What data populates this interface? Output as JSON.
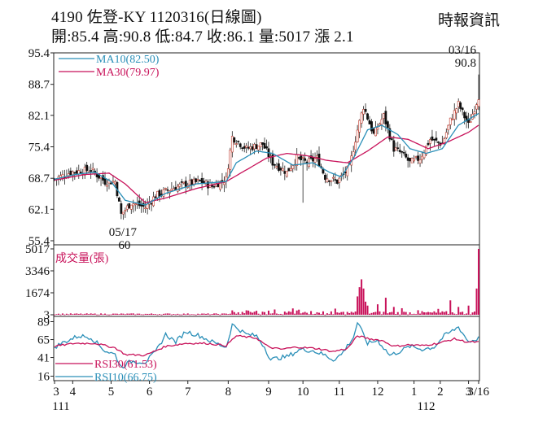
{
  "header": {
    "title": "4190  佐登-KY 1120316(日線圖)",
    "quote": "開:85.4 高:90.8 低:84.7 收:86.1 量:5017 漲 2.1",
    "source": "時報資訊"
  },
  "chart_data": [
    {
      "type": "candlestick",
      "panel": "price",
      "y_ticks": [
        "95.4",
        "88.7",
        "82.1",
        "75.4",
        "68.7",
        "62.1",
        "55.4"
      ],
      "ylim": [
        55.4,
        95.4
      ],
      "legend": [
        {
          "name": "MA10",
          "value": "MA10(82.50)",
          "color": "#2a8fb8"
        },
        {
          "name": "MA30",
          "value": "MA30(79.97)",
          "color": "#c8125a"
        }
      ],
      "annotations": [
        {
          "date": "05/17",
          "value": "60",
          "kind": "low"
        },
        {
          "date": "03/16",
          "value": "90.8",
          "kind": "high"
        }
      ],
      "close_anchors": [
        [
          0,
          68.5
        ],
        [
          8,
          70
        ],
        [
          18,
          70.5
        ],
        [
          25,
          68
        ],
        [
          30,
          68
        ],
        [
          33,
          61
        ],
        [
          38,
          63.5
        ],
        [
          45,
          62.5
        ],
        [
          50,
          65
        ],
        [
          58,
          66.5
        ],
        [
          65,
          67.5
        ],
        [
          72,
          68
        ],
        [
          78,
          67
        ],
        [
          85,
          68.5
        ],
        [
          88,
          77.5
        ],
        [
          95,
          75
        ],
        [
          103,
          76
        ],
        [
          108,
          72
        ],
        [
          115,
          70
        ],
        [
          120,
          73
        ],
        [
          125,
          72
        ],
        [
          130,
          73
        ],
        [
          134,
          69
        ],
        [
          140,
          68
        ],
        [
          146,
          71
        ],
        [
          150,
          79
        ],
        [
          153,
          84
        ],
        [
          158,
          78
        ],
        [
          163,
          82
        ],
        [
          168,
          75
        ],
        [
          172,
          74
        ],
        [
          176,
          72
        ],
        [
          181,
          73
        ],
        [
          186,
          77
        ],
        [
          192,
          76
        ],
        [
          196,
          81
        ],
        [
          200,
          84.5
        ],
        [
          205,
          80
        ],
        [
          210,
          86.1
        ]
      ],
      "ma10_anchors": [
        [
          0,
          68.5
        ],
        [
          10,
          69.5
        ],
        [
          20,
          70
        ],
        [
          28,
          68
        ],
        [
          35,
          64
        ],
        [
          45,
          63
        ],
        [
          55,
          65.5
        ],
        [
          70,
          67.5
        ],
        [
          85,
          68
        ],
        [
          90,
          72
        ],
        [
          100,
          74.5
        ],
        [
          108,
          74
        ],
        [
          118,
          71.5
        ],
        [
          128,
          72
        ],
        [
          136,
          70
        ],
        [
          142,
          69
        ],
        [
          148,
          73
        ],
        [
          155,
          79
        ],
        [
          162,
          80
        ],
        [
          170,
          78
        ],
        [
          176,
          75
        ],
        [
          184,
          74
        ],
        [
          192,
          75
        ],
        [
          200,
          80
        ],
        [
          210,
          82.5
        ]
      ],
      "ma30_anchors": [
        [
          0,
          68.3
        ],
        [
          15,
          69.5
        ],
        [
          27,
          69.8
        ],
        [
          35,
          67.5
        ],
        [
          45,
          63.5
        ],
        [
          55,
          64.5
        ],
        [
          70,
          66.5
        ],
        [
          85,
          68
        ],
        [
          95,
          70.5
        ],
        [
          105,
          73
        ],
        [
          115,
          74
        ],
        [
          125,
          73.5
        ],
        [
          135,
          72.5
        ],
        [
          145,
          72
        ],
        [
          155,
          74.5
        ],
        [
          165,
          77.5
        ],
        [
          175,
          77
        ],
        [
          185,
          75
        ],
        [
          195,
          76.5
        ],
        [
          205,
          78.5
        ],
        [
          210,
          80
        ]
      ]
    },
    {
      "type": "bar",
      "panel": "volume",
      "label": "成交量(張)",
      "y_ticks": [
        "5017",
        "3346",
        "1674",
        "3"
      ],
      "ylim": [
        3,
        5017
      ],
      "spikes": [
        {
          "i": 150,
          "v": 1400
        },
        {
          "i": 151,
          "v": 2100
        },
        {
          "i": 152,
          "v": 2700
        },
        {
          "i": 153,
          "v": 2000
        },
        {
          "i": 154,
          "v": 1000
        },
        {
          "i": 155,
          "v": 700
        },
        {
          "i": 160,
          "v": 800
        },
        {
          "i": 164,
          "v": 1300
        },
        {
          "i": 168,
          "v": 600
        },
        {
          "i": 172,
          "v": 500
        },
        {
          "i": 180,
          "v": 350
        },
        {
          "i": 190,
          "v": 450
        },
        {
          "i": 196,
          "v": 1100
        },
        {
          "i": 200,
          "v": 600
        },
        {
          "i": 205,
          "v": 700
        },
        {
          "i": 209,
          "v": 2000
        },
        {
          "i": 210,
          "v": 5017
        }
      ]
    },
    {
      "type": "line",
      "panel": "rsi",
      "y_ticks": [
        "89",
        "65",
        "41",
        "16"
      ],
      "ylim": [
        10,
        95
      ],
      "legend": [
        {
          "name": "RSI30",
          "value": "RSI30(61.53)",
          "color": "#c8125a"
        },
        {
          "name": "RSI10",
          "value": "RSI10(66.75)",
          "color": "#2a8fb8"
        }
      ],
      "rsi10_anchors": [
        [
          0,
          55
        ],
        [
          5,
          62
        ],
        [
          12,
          70
        ],
        [
          18,
          68
        ],
        [
          25,
          50
        ],
        [
          30,
          45
        ],
        [
          33,
          28
        ],
        [
          38,
          36
        ],
        [
          45,
          35
        ],
        [
          50,
          48
        ],
        [
          55,
          72
        ],
        [
          60,
          62
        ],
        [
          65,
          76
        ],
        [
          72,
          70
        ],
        [
          78,
          62
        ],
        [
          85,
          55
        ],
        [
          88,
          85
        ],
        [
          95,
          72
        ],
        [
          100,
          70
        ],
        [
          104,
          55
        ],
        [
          107,
          38
        ],
        [
          110,
          40
        ],
        [
          115,
          42
        ],
        [
          122,
          52
        ],
        [
          128,
          50
        ],
        [
          134,
          44
        ],
        [
          138,
          38
        ],
        [
          142,
          45
        ],
        [
          148,
          68
        ],
        [
          150,
          88
        ],
        [
          155,
          60
        ],
        [
          160,
          64
        ],
        [
          166,
          44
        ],
        [
          170,
          48
        ],
        [
          176,
          56
        ],
        [
          182,
          52
        ],
        [
          188,
          55
        ],
        [
          193,
          70
        ],
        [
          196,
          75
        ],
        [
          200,
          82
        ],
        [
          205,
          62
        ],
        [
          210,
          66.75
        ]
      ],
      "rsi30_anchors": [
        [
          0,
          56
        ],
        [
          10,
          60
        ],
        [
          20,
          60
        ],
        [
          30,
          54
        ],
        [
          35,
          45
        ],
        [
          45,
          44
        ],
        [
          55,
          56
        ],
        [
          65,
          60
        ],
        [
          75,
          60
        ],
        [
          85,
          57
        ],
        [
          90,
          70
        ],
        [
          100,
          67
        ],
        [
          106,
          55
        ],
        [
          112,
          52
        ],
        [
          120,
          55
        ],
        [
          130,
          53
        ],
        [
          138,
          49
        ],
        [
          145,
          53
        ],
        [
          150,
          70
        ],
        [
          156,
          66
        ],
        [
          162,
          64
        ],
        [
          168,
          56
        ],
        [
          175,
          58
        ],
        [
          182,
          57
        ],
        [
          190,
          60
        ],
        [
          198,
          66
        ],
        [
          204,
          62
        ],
        [
          210,
          61.53
        ]
      ]
    }
  ],
  "x_axis": {
    "ticks": [
      {
        "label": "3",
        "i": 0
      },
      {
        "label": "4",
        "i": 9
      },
      {
        "label": "5",
        "i": 28
      },
      {
        "label": "6",
        "i": 47
      },
      {
        "label": "7",
        "i": 66
      },
      {
        "label": "8",
        "i": 86
      },
      {
        "label": "9",
        "i": 106
      },
      {
        "label": "10",
        "i": 123
      },
      {
        "label": "11",
        "i": 141
      },
      {
        "label": "12",
        "i": 160
      },
      {
        "label": "1",
        "i": 178
      },
      {
        "label": "2",
        "i": 191
      },
      {
        "label": "3",
        "i": 205
      },
      {
        "label": "3/16",
        "i": 210
      }
    ],
    "year_labels": [
      {
        "label": "111",
        "i": 0
      },
      {
        "label": "112",
        "i": 184
      }
    ]
  }
}
